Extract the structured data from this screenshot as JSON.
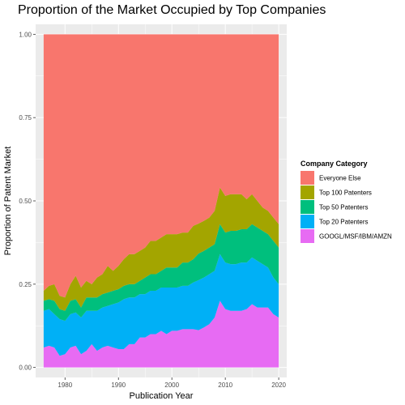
{
  "chart_data": {
    "type": "area",
    "stacked": true,
    "title": "Proportion of the Market Occupied by Top Companies",
    "xlabel": "Publication Year",
    "ylabel": "Proportion of Patent Market",
    "xlim": [
      1974.5,
      2021.5
    ],
    "ylim": [
      -0.03,
      1.03
    ],
    "x_ticks": [
      1980,
      1990,
      2000,
      2010,
      2020
    ],
    "y_ticks": [
      0.0,
      0.25,
      0.5,
      0.75,
      1.0
    ],
    "y_tick_labels": [
      "0.00",
      "0.25",
      "0.50",
      "0.75",
      "1.00"
    ],
    "grid": true,
    "legend": {
      "title": "Company Category",
      "position": "right"
    },
    "x": [
      1976,
      1977,
      1978,
      1979,
      1980,
      1981,
      1982,
      1983,
      1984,
      1985,
      1986,
      1987,
      1988,
      1989,
      1990,
      1991,
      1992,
      1993,
      1994,
      1995,
      1996,
      1997,
      1998,
      1999,
      2000,
      2001,
      2002,
      2003,
      2004,
      2005,
      2006,
      2007,
      2008,
      2009,
      2010,
      2011,
      2012,
      2013,
      2014,
      2015,
      2016,
      2017,
      2018,
      2019,
      2020
    ],
    "series": [
      {
        "name": "GOOGL/MSF/IBM/AMZN",
        "color": "#e76bf3",
        "values": [
          0.06,
          0.065,
          0.06,
          0.035,
          0.04,
          0.06,
          0.065,
          0.04,
          0.05,
          0.07,
          0.05,
          0.06,
          0.065,
          0.06,
          0.055,
          0.055,
          0.07,
          0.07,
          0.09,
          0.09,
          0.1,
          0.1,
          0.11,
          0.1,
          0.11,
          0.11,
          0.115,
          0.115,
          0.115,
          0.112,
          0.12,
          0.13,
          0.15,
          0.2,
          0.175,
          0.17,
          0.17,
          0.17,
          0.175,
          0.19,
          0.18,
          0.18,
          0.18,
          0.16,
          0.15
        ]
      },
      {
        "name": "Top 20 Patenters",
        "color": "#00b0f6",
        "values": [
          0.11,
          0.11,
          0.1,
          0.11,
          0.1,
          0.1,
          0.1,
          0.11,
          0.12,
          0.1,
          0.12,
          0.12,
          0.12,
          0.13,
          0.14,
          0.15,
          0.14,
          0.14,
          0.13,
          0.13,
          0.13,
          0.13,
          0.13,
          0.14,
          0.13,
          0.13,
          0.13,
          0.13,
          0.14,
          0.15,
          0.15,
          0.15,
          0.14,
          0.14,
          0.14,
          0.14,
          0.14,
          0.145,
          0.14,
          0.14,
          0.14,
          0.13,
          0.12,
          0.11,
          0.1
        ]
      },
      {
        "name": "Top 50 Patenters",
        "color": "#00bf7d",
        "values": [
          0.03,
          0.03,
          0.04,
          0.03,
          0.03,
          0.04,
          0.04,
          0.03,
          0.04,
          0.04,
          0.04,
          0.04,
          0.04,
          0.04,
          0.04,
          0.04,
          0.04,
          0.04,
          0.04,
          0.05,
          0.05,
          0.05,
          0.05,
          0.06,
          0.06,
          0.06,
          0.07,
          0.07,
          0.07,
          0.08,
          0.08,
          0.08,
          0.08,
          0.09,
          0.09,
          0.1,
          0.1,
          0.1,
          0.1,
          0.1,
          0.1,
          0.1,
          0.1,
          0.11,
          0.11
        ]
      },
      {
        "name": "Top 100 Patenters",
        "color": "#a3a500",
        "values": [
          0.03,
          0.04,
          0.05,
          0.04,
          0.04,
          0.05,
          0.07,
          0.06,
          0.05,
          0.04,
          0.06,
          0.06,
          0.08,
          0.06,
          0.07,
          0.08,
          0.09,
          0.09,
          0.09,
          0.09,
          0.1,
          0.1,
          0.1,
          0.1,
          0.1,
          0.1,
          0.09,
          0.09,
          0.1,
          0.09,
          0.09,
          0.09,
          0.1,
          0.11,
          0.11,
          0.11,
          0.11,
          0.105,
          0.09,
          0.09,
          0.08,
          0.07,
          0.07,
          0.07,
          0.07
        ]
      },
      {
        "name": "Everyone Else",
        "color": "#f8766d",
        "values": [
          0.77,
          0.755,
          0.75,
          0.785,
          0.79,
          0.75,
          0.725,
          0.76,
          0.74,
          0.75,
          0.73,
          0.72,
          0.695,
          0.71,
          0.695,
          0.675,
          0.66,
          0.66,
          0.65,
          0.64,
          0.62,
          0.62,
          0.61,
          0.6,
          0.6,
          0.6,
          0.595,
          0.595,
          0.575,
          0.568,
          0.56,
          0.55,
          0.53,
          0.46,
          0.485,
          0.48,
          0.48,
          0.48,
          0.495,
          0.48,
          0.5,
          0.52,
          0.53,
          0.55,
          0.57
        ]
      }
    ],
    "legend_order": [
      "Everyone Else",
      "Top 100 Patenters",
      "Top 50 Patenters",
      "Top 20 Patenters",
      "GOOGL/MSF/IBM/AMZN"
    ]
  }
}
